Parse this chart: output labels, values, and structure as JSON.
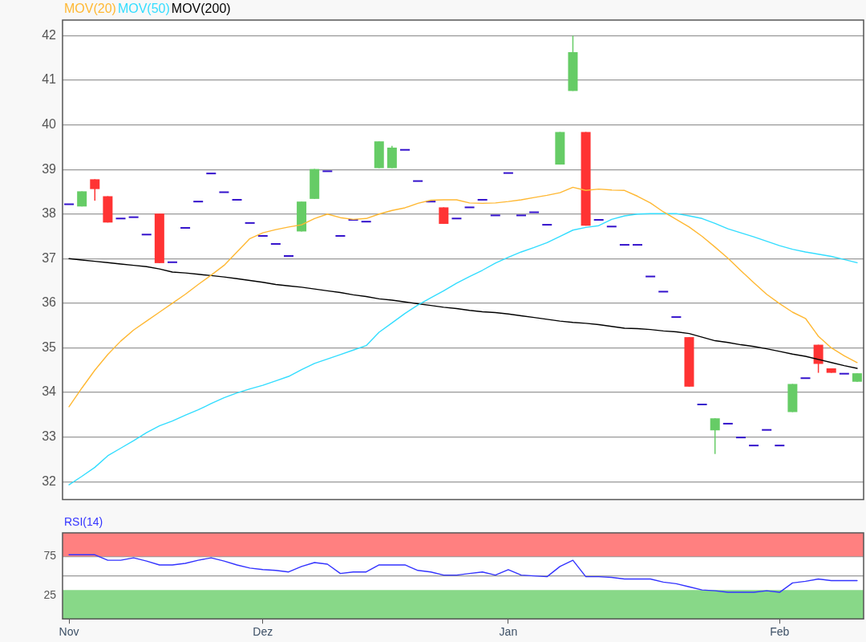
{
  "chart_data": [
    {
      "type": "candlestick",
      "categories": [
        null,
        null,
        null,
        null,
        null,
        null,
        null,
        null,
        null,
        null,
        null,
        null,
        null,
        null,
        null,
        null,
        null,
        null,
        null,
        null,
        null,
        null,
        null,
        null,
        null,
        null,
        null,
        null,
        null,
        null,
        null,
        null,
        null,
        null,
        null,
        null,
        null,
        null,
        null,
        null,
        null,
        null,
        null,
        null,
        null,
        null,
        null,
        null,
        null,
        null,
        null,
        null,
        null,
        null,
        null,
        null,
        null,
        null,
        null,
        null,
        null,
        null
      ],
      "ylim": [
        31.6,
        42.35
      ],
      "yticks": [
        32,
        33,
        34,
        35,
        36,
        37,
        38,
        39,
        40,
        41,
        42
      ],
      "grid": "y",
      "legend": "top left",
      "marker": "none",
      "series": [
        {
          "type": "candlestick",
          "ohlc": [
            [
              38.22,
              38.22,
              38.22,
              38.22
            ],
            [
              38.17,
              38.51,
              38.17,
              38.51
            ],
            [
              38.78,
              38.78,
              38.3,
              38.56
            ],
            [
              38.4,
              38.4,
              37.81,
              37.81
            ],
            [
              37.9,
              37.9,
              37.9,
              37.9
            ],
            [
              37.93,
              37.93,
              37.93,
              37.93
            ],
            [
              37.54,
              37.54,
              37.54,
              37.54
            ],
            [
              38.01,
              38.01,
              36.9,
              36.9
            ],
            [
              36.92,
              36.92,
              36.92,
              36.92
            ],
            [
              37.69,
              37.69,
              37.69,
              37.69
            ],
            [
              38.28,
              38.28,
              38.28,
              38.28
            ],
            [
              38.91,
              38.91,
              38.91,
              38.91
            ],
            [
              38.49,
              38.49,
              38.49,
              38.49
            ],
            [
              38.32,
              38.32,
              38.32,
              38.32
            ],
            [
              37.8,
              37.8,
              37.8,
              37.8
            ],
            [
              37.51,
              37.51,
              37.51,
              37.51
            ],
            [
              37.33,
              37.33,
              37.33,
              37.33
            ],
            [
              37.06,
              37.06,
              37.06,
              37.06
            ],
            [
              37.61,
              38.28,
              37.61,
              38.28
            ],
            [
              38.34,
              39.01,
              38.34,
              39.01
            ],
            [
              38.96,
              38.96,
              38.96,
              38.96
            ],
            [
              37.51,
              37.51,
              37.51,
              37.51
            ],
            [
              37.87,
              37.87,
              37.87,
              37.87
            ],
            [
              37.83,
              37.83,
              37.83,
              37.83
            ],
            [
              39.03,
              39.63,
              39.03,
              39.63
            ],
            [
              39.03,
              39.53,
              39.03,
              39.49
            ],
            [
              39.44,
              39.44,
              39.44,
              39.44
            ],
            [
              38.74,
              38.74,
              38.74,
              38.74
            ],
            [
              38.28,
              38.28,
              38.28,
              38.28
            ],
            [
              38.15,
              38.15,
              37.78,
              37.78
            ],
            [
              37.9,
              37.9,
              37.9,
              37.9
            ],
            [
              38.15,
              38.15,
              38.15,
              38.15
            ],
            [
              38.32,
              38.32,
              38.32,
              38.32
            ],
            [
              37.97,
              37.97,
              37.97,
              37.97
            ],
            [
              38.92,
              38.92,
              38.92,
              38.92
            ],
            [
              37.97,
              37.97,
              37.97,
              37.97
            ],
            [
              38.04,
              38.04,
              38.04,
              38.04
            ],
            [
              37.76,
              37.76,
              37.76,
              37.76
            ],
            [
              39.11,
              39.84,
              39.11,
              39.84
            ],
            [
              40.76,
              42.0,
              40.76,
              41.63
            ],
            [
              39.84,
              39.84,
              37.74,
              37.74
            ],
            [
              37.87,
              37.87,
              37.87,
              37.87
            ],
            [
              37.72,
              37.72,
              37.72,
              37.72
            ],
            [
              37.31,
              37.31,
              37.31,
              37.31
            ],
            [
              37.31,
              37.31,
              37.31,
              37.31
            ],
            [
              36.6,
              36.6,
              36.6,
              36.6
            ],
            [
              36.26,
              36.26,
              36.26,
              36.26
            ],
            [
              35.69,
              35.69,
              35.69,
              35.69
            ],
            [
              35.24,
              35.24,
              34.13,
              34.13
            ],
            [
              33.73,
              33.73,
              33.73,
              33.73
            ],
            [
              33.15,
              33.42,
              32.62,
              33.42
            ],
            [
              33.3,
              33.3,
              33.3,
              33.3
            ],
            [
              32.99,
              32.99,
              32.99,
              32.99
            ],
            [
              32.81,
              32.81,
              32.81,
              32.81
            ],
            [
              33.16,
              33.16,
              33.16,
              33.16
            ],
            [
              32.81,
              32.81,
              32.81,
              32.81
            ],
            [
              33.56,
              34.19,
              33.56,
              34.19
            ],
            [
              34.32,
              34.32,
              34.32,
              34.32
            ],
            [
              35.07,
              35.07,
              34.44,
              34.64
            ],
            [
              34.54,
              34.54,
              34.44,
              34.44
            ],
            [
              34.42,
              34.42,
              34.42,
              34.42
            ],
            [
              34.24,
              34.43,
              34.24,
              34.43
            ]
          ],
          "colors": [
            "#3311cc",
            "#66cc66",
            "#ff3333",
            "#ff3333",
            "#3311cc",
            "#3311cc",
            "#3311cc",
            "#ff3333",
            "#3311cc",
            "#3311cc",
            "#3311cc",
            "#3311cc",
            "#3311cc",
            "#3311cc",
            "#3311cc",
            "#3311cc",
            "#3311cc",
            "#3311cc",
            "#66cc66",
            "#66cc66",
            "#3311cc",
            "#3311cc",
            "#3311cc",
            "#3311cc",
            "#66cc66",
            "#66cc66",
            "#3311cc",
            "#3311cc",
            "#3311cc",
            "#ff3333",
            "#3311cc",
            "#3311cc",
            "#3311cc",
            "#3311cc",
            "#3311cc",
            "#3311cc",
            "#3311cc",
            "#3311cc",
            "#66cc66",
            "#66cc66",
            "#ff3333",
            "#3311cc",
            "#3311cc",
            "#3311cc",
            "#3311cc",
            "#3311cc",
            "#3311cc",
            "#3311cc",
            "#ff3333",
            "#3311cc",
            "#66cc66",
            "#3311cc",
            "#3311cc",
            "#3311cc",
            "#3311cc",
            "#3311cc",
            "#66cc66",
            "#3311cc",
            "#ff3333",
            "#ff3333",
            "#3311cc",
            "#66cc66"
          ]
        },
        {
          "type": "line",
          "name": "MOV(20)",
          "color": "#ffb833",
          "values": [
            33.68,
            34.1,
            34.5,
            34.85,
            35.15,
            35.4,
            35.6,
            35.8,
            36.0,
            36.2,
            36.42,
            36.63,
            36.85,
            37.15,
            37.45,
            37.58,
            37.65,
            37.71,
            37.76,
            37.9,
            38.0,
            37.92,
            37.88,
            37.9,
            38.0,
            38.08,
            38.14,
            38.24,
            38.31,
            38.32,
            38.32,
            38.25,
            38.24,
            38.25,
            38.28,
            38.32,
            38.37,
            38.42,
            38.48,
            38.6,
            38.53,
            38.56,
            38.54,
            38.53,
            38.4,
            38.25,
            38.05,
            37.88,
            37.71,
            37.5,
            37.26,
            37.01,
            36.73,
            36.46,
            36.2,
            35.99,
            35.8,
            35.66,
            35.26,
            35.0,
            34.82,
            34.67
          ]
        },
        {
          "type": "line",
          "name": "MOV(50)",
          "color": "#33ddff",
          "values": [
            31.93,
            32.12,
            32.32,
            32.58,
            32.75,
            32.92,
            33.1,
            33.25,
            33.36,
            33.49,
            33.61,
            33.75,
            33.88,
            33.99,
            34.08,
            34.16,
            34.26,
            34.36,
            34.51,
            34.65,
            34.75,
            34.85,
            34.95,
            35.05,
            35.35,
            35.56,
            35.77,
            35.96,
            36.12,
            36.28,
            36.45,
            36.6,
            36.74,
            36.9,
            37.03,
            37.15,
            37.25,
            37.36,
            37.5,
            37.64,
            37.7,
            37.74,
            37.88,
            37.96,
            38.0,
            38.01,
            38.01,
            38.01,
            37.96,
            37.9,
            37.79,
            37.67,
            37.58,
            37.49,
            37.39,
            37.29,
            37.21,
            37.15,
            37.1,
            37.05,
            36.98,
            36.91
          ]
        },
        {
          "type": "line",
          "name": "MOV(200)",
          "color": "#000000",
          "values": [
            37.0,
            36.97,
            36.94,
            36.91,
            36.88,
            36.85,
            36.82,
            36.77,
            36.7,
            36.68,
            36.65,
            36.62,
            36.59,
            36.55,
            36.51,
            36.47,
            36.42,
            36.39,
            36.36,
            36.32,
            36.28,
            36.24,
            36.19,
            36.15,
            36.1,
            36.07,
            36.03,
            35.99,
            35.95,
            35.91,
            35.88,
            35.84,
            35.81,
            35.79,
            35.76,
            35.72,
            35.68,
            35.64,
            35.6,
            35.57,
            35.55,
            35.52,
            35.48,
            35.44,
            35.43,
            35.41,
            35.38,
            35.36,
            35.32,
            35.24,
            35.16,
            35.12,
            35.07,
            35.03,
            34.98,
            34.92,
            34.86,
            34.81,
            34.74,
            34.67,
            34.6,
            34.54
          ]
        }
      ]
    },
    {
      "type": "line",
      "categories": [
        "Nov",
        null,
        null,
        null,
        null,
        null,
        null,
        null,
        null,
        null,
        null,
        null,
        null,
        null,
        null,
        "Dez",
        null,
        null,
        null,
        null,
        null,
        null,
        null,
        null,
        null,
        null,
        null,
        null,
        null,
        null,
        null,
        null,
        null,
        null,
        "Jan",
        null,
        null,
        null,
        null,
        null,
        null,
        null,
        null,
        null,
        null,
        null,
        null,
        null,
        null,
        null,
        null,
        null,
        null,
        null,
        null,
        "Feb",
        null,
        null,
        null,
        null,
        null,
        null
      ],
      "ylim": [
        -5,
        105
      ],
      "yticks": [
        25,
        75
      ],
      "grid": "y",
      "legend": "top left",
      "marker": "none",
      "bands": [
        {
          "axis": "y",
          "from": 75,
          "to": 105,
          "color": "#ff8080"
        },
        {
          "axis": "y",
          "from": -5,
          "to": 32,
          "color": "#88d888"
        }
      ],
      "ref_lines": [
        {
          "axis": "y",
          "value": 50,
          "color": "#999999"
        }
      ],
      "series": [
        {
          "name": "RSI(14)",
          "color": "#3333ff",
          "values": [
            77,
            77,
            77,
            70,
            70,
            73,
            69,
            64,
            64,
            66,
            70,
            73,
            69,
            64,
            60,
            58,
            57,
            55,
            62,
            67,
            65,
            53,
            55,
            55,
            64,
            64,
            64,
            57,
            55,
            51,
            51,
            53,
            55,
            51,
            58,
            51,
            50,
            49,
            62,
            70,
            49,
            49,
            48,
            46,
            46,
            46,
            42,
            40,
            36,
            32,
            31,
            29,
            null,
            29,
            31,
            29,
            41,
            43,
            46,
            44,
            44,
            44
          ]
        }
      ]
    }
  ]
}
